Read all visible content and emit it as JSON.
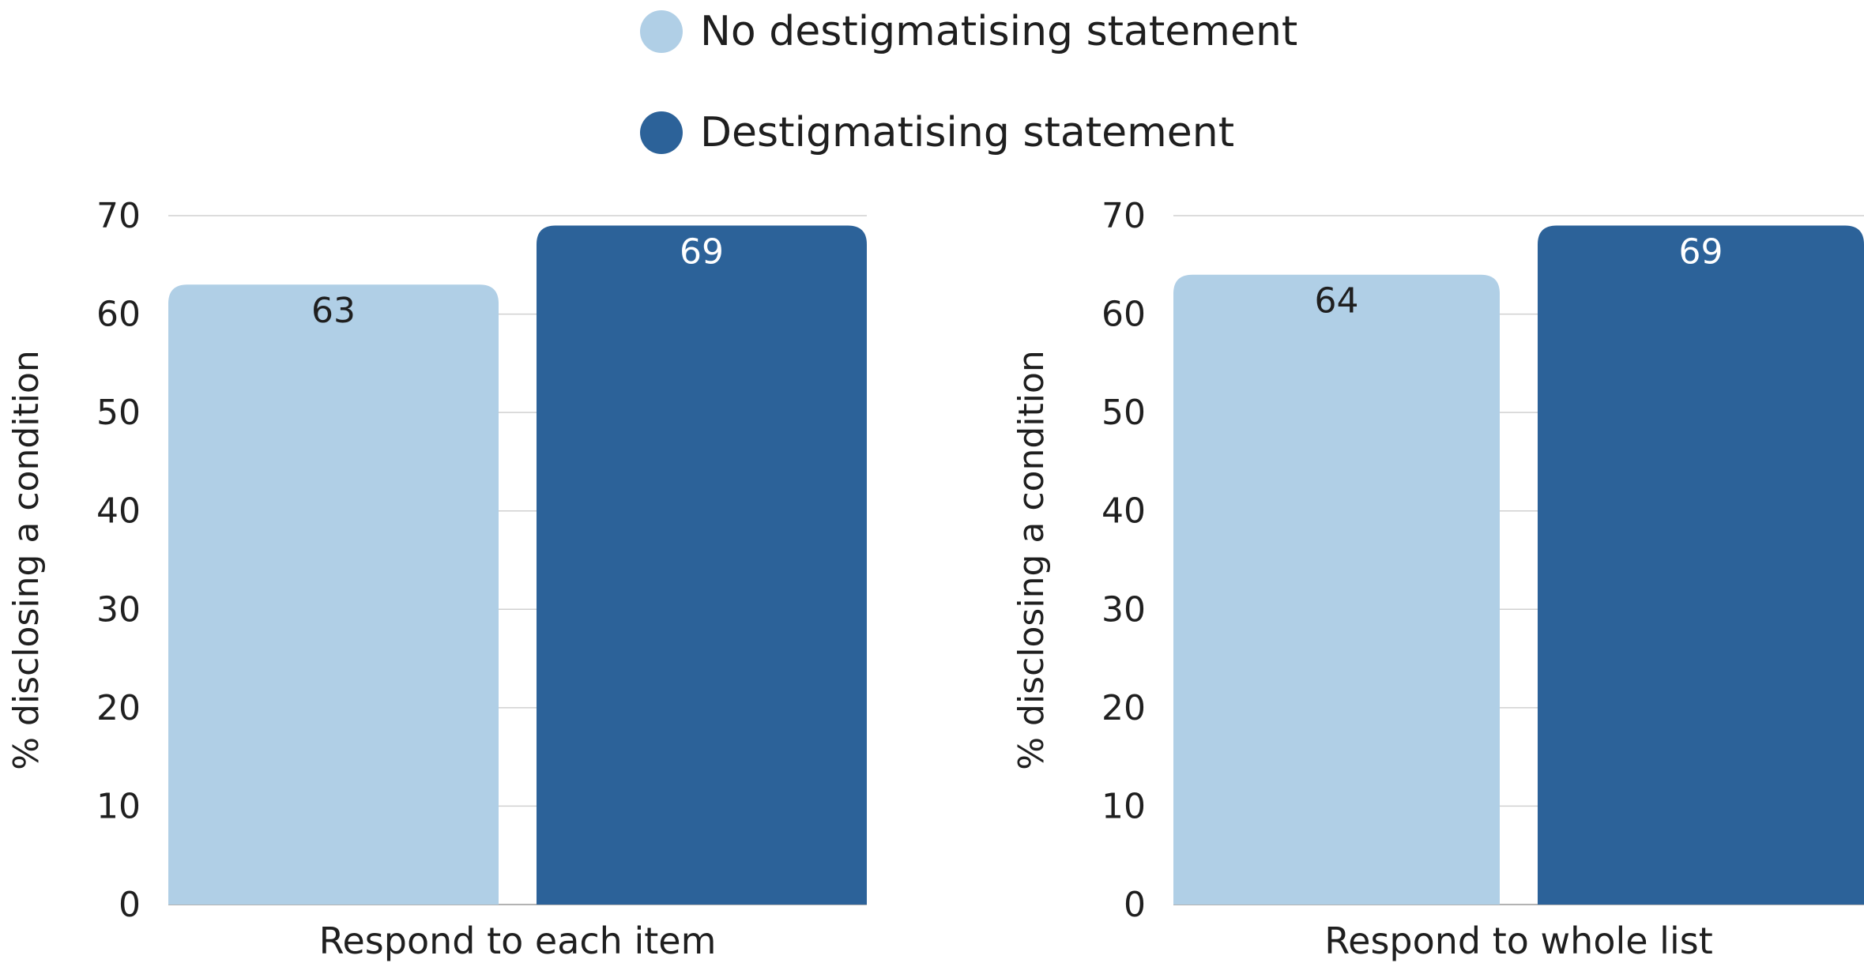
{
  "legend": {
    "position": "top-center",
    "items": [
      {
        "label": "No destigmatising statement",
        "color": "#b0cfe6"
      },
      {
        "label": "Destigmatising statement",
        "color": "#2c6299"
      }
    ]
  },
  "chart_data": [
    {
      "type": "bar",
      "categories": [
        "Respond to each item"
      ],
      "series": [
        {
          "name": "No destigmatising statement",
          "values": [
            63
          ]
        },
        {
          "name": "Destigmatising statement",
          "values": [
            69
          ]
        }
      ],
      "ylabel": "% disclosing a condition",
      "ylim": [
        0,
        70
      ],
      "yticks": [
        0,
        10,
        20,
        30,
        40,
        50,
        60,
        70
      ],
      "grid": true
    },
    {
      "type": "bar",
      "categories": [
        "Respond to whole list"
      ],
      "series": [
        {
          "name": "No destigmatising statement",
          "values": [
            64
          ]
        },
        {
          "name": "Destigmatising statement",
          "values": [
            69
          ]
        }
      ],
      "ylabel": "% disclosing a condition",
      "ylim": [
        0,
        70
      ],
      "yticks": [
        0,
        10,
        20,
        30,
        40,
        50,
        60,
        70
      ],
      "grid": true
    }
  ],
  "colors": {
    "series_light": "#b0cfe6",
    "series_dark": "#2c6299",
    "label_on_light": "#1f1f1f",
    "label_on_dark": "#ffffff",
    "grid": "#d0d0d0"
  }
}
